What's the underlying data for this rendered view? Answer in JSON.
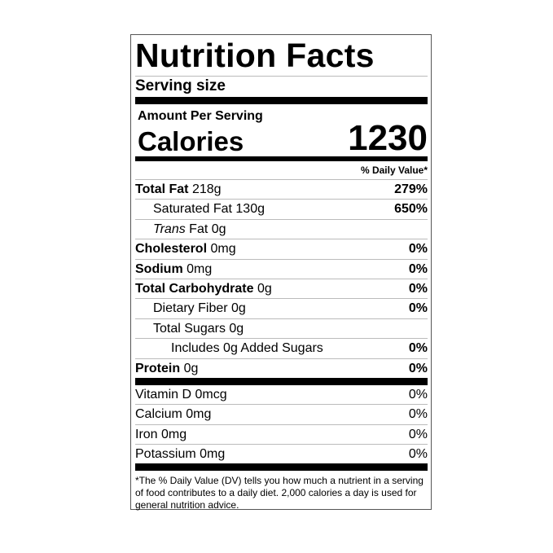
{
  "title": "Nutrition Facts",
  "serving_size_label": "Serving size",
  "amount_per_serving": "Amount Per Serving",
  "calories_label": "Calories",
  "calories_value": "1230",
  "daily_value_header": "% Daily Value*",
  "nutrients": [
    {
      "name": "Total Fat",
      "amount": "218g",
      "dv": "279%"
    },
    {
      "name": "Saturated Fat",
      "amount": "130g",
      "dv": "650%"
    },
    {
      "name_italic": "Trans",
      "name": "Fat",
      "amount": "0g",
      "dv": ""
    },
    {
      "name": "Cholesterol",
      "amount": "0mg",
      "dv": "0%"
    },
    {
      "name": "Sodium",
      "amount": "0mg",
      "dv": "0%"
    },
    {
      "name": "Total Carbohydrate",
      "amount": "0g",
      "dv": "0%"
    },
    {
      "name": "Dietary Fiber",
      "amount": "0g",
      "dv": "0%"
    },
    {
      "name": "Total Sugars",
      "amount": "0g",
      "dv": ""
    },
    {
      "name": "Includes 0g Added Sugars",
      "amount": "",
      "dv": "0%"
    },
    {
      "name": "Protein",
      "amount": "0g",
      "dv": "0%"
    }
  ],
  "vitamins": [
    {
      "name": "Vitamin D 0mcg",
      "dv": "0%"
    },
    {
      "name": "Calcium 0mg",
      "dv": "0%"
    },
    {
      "name": "Iron 0mg",
      "dv": "0%"
    },
    {
      "name": "Potassium 0mg",
      "dv": "0%"
    }
  ],
  "footnote": "*The % Daily Value (DV) tells you how much a nutrient in a serving of food contributes to a daily diet. 2,000 calories a day is used for general nutrition advice."
}
